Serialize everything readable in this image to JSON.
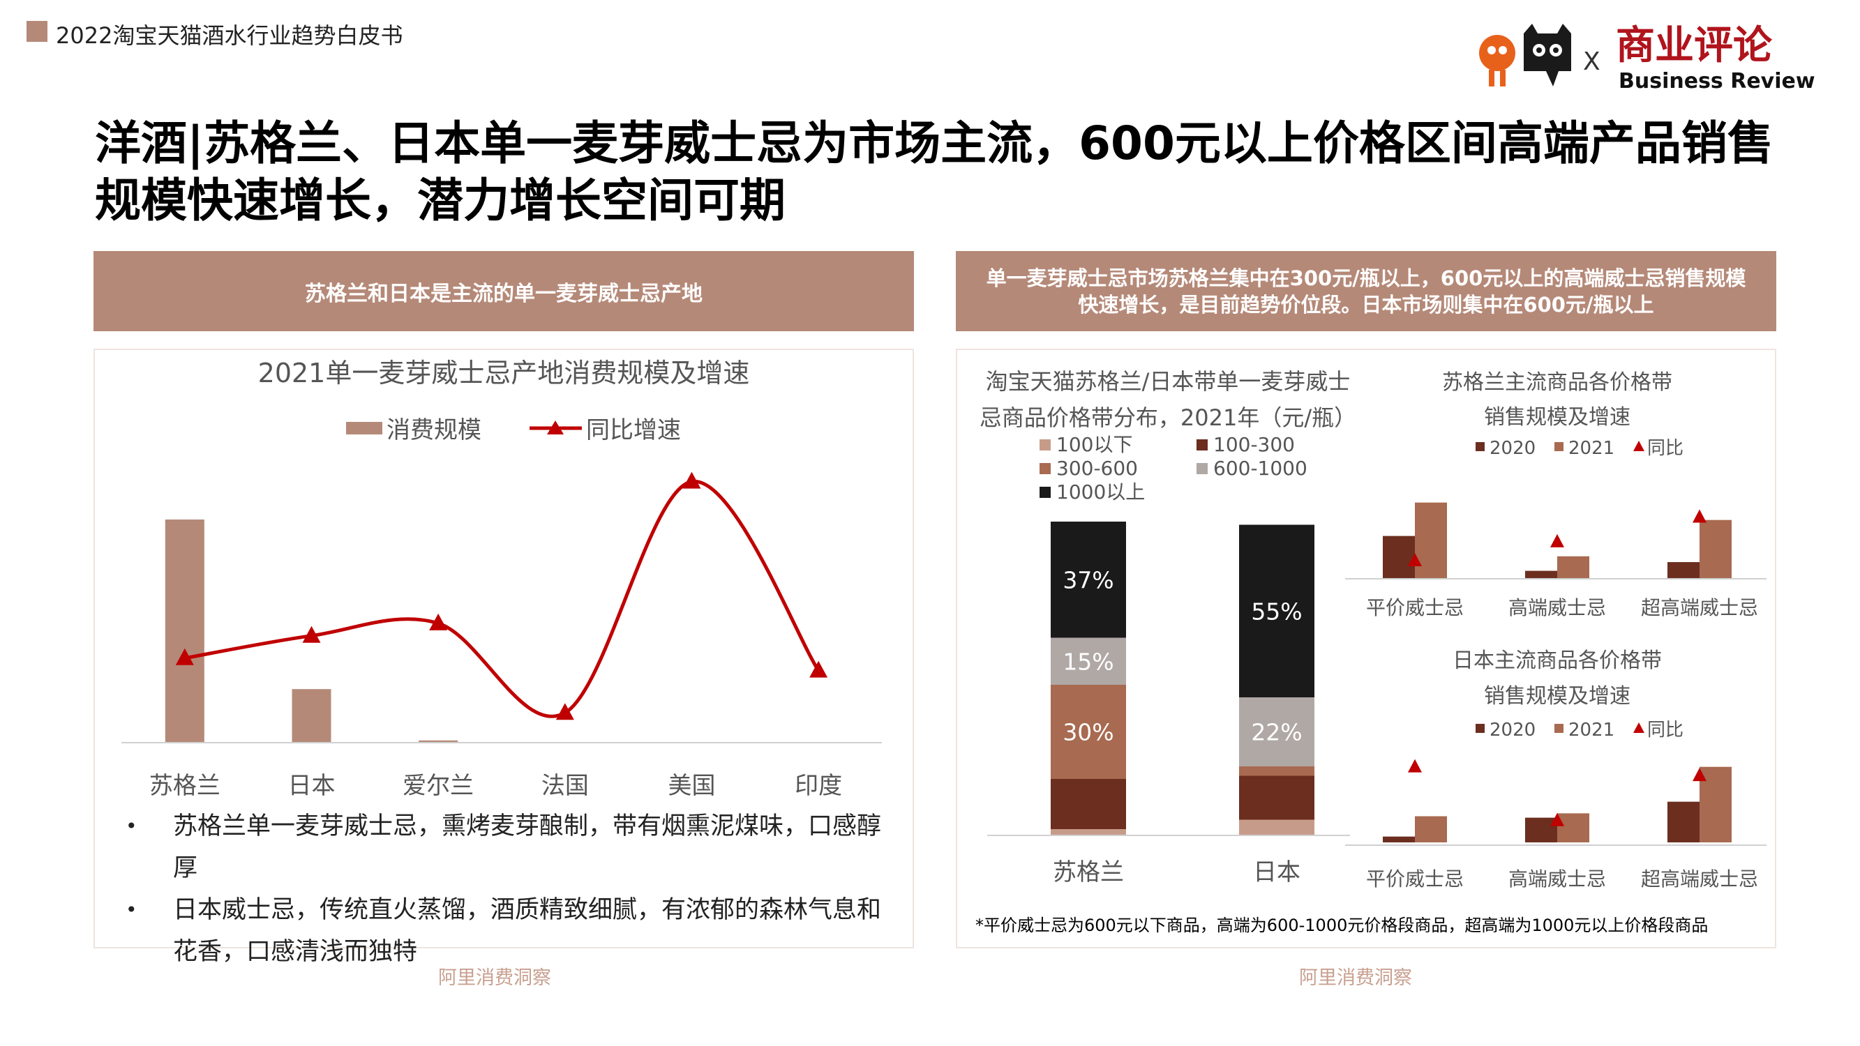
{
  "header": {
    "report_title": "2022淘宝天猫酒水行业趋势白皮书"
  },
  "logo": {
    "brand_text": "商业评论",
    "brand_sub": "Business Review",
    "x_mark": "X"
  },
  "title": "洋酒|苏格兰、日本单一麦芽威士忌为市场主流，600元以上价格区间高端产品销售规模快速增长，潜力增长空间可期",
  "left_panel": {
    "banner": "苏格兰和日本是主流的单一麦芽威士忌产地",
    "bullets": [
      "苏格兰单一麦芽威士忌，熏烤麦芽酿制，带有烟熏泥煤味，口感醇厚",
      "日本威士忌，传统直火蒸馏，酒质精致细腻，有浓郁的森林气息和花香，口感清浅而独特"
    ],
    "source": "阿里消费洞察"
  },
  "right_panel": {
    "banner": "单一麦芽威士忌市场苏格兰集中在300元/瓶以上，600元以上的高端威士忌销售规模快速增长，是目前趋势价位段。日本市场则集中在600元/瓶以上",
    "footnote": "*平价威士忌为600元以下商品，高端为600-1000元价格段商品，超高端为1000元以上价格段商品",
    "source": "阿里消费洞察"
  },
  "colors": {
    "accent": "#B58978",
    "line_red": "#C00000",
    "dark_brown": "#6B2E1F",
    "mid_brown": "#A86A50",
    "grey": "#B0A8A5",
    "black": "#1a1a1a",
    "light_brown": "#C79B8A"
  },
  "chart_data": [
    {
      "id": "origin",
      "type": "bar",
      "title": "2021单一麦芽威士忌产地消费规模及增速",
      "categories": [
        "苏格兰",
        "日本",
        "爱尔兰",
        "法国",
        "美国",
        "印度"
      ],
      "series": [
        {
          "name": "消费规模",
          "kind": "bar",
          "values": [
            100,
            24,
            1,
            0,
            0,
            0
          ]
        },
        {
          "name": "同比增速",
          "kind": "line",
          "values": [
            34,
            43,
            48,
            12,
            105,
            29
          ]
        }
      ],
      "ylim_bar": [
        0,
        100
      ],
      "ylim_line": [
        0,
        115
      ],
      "legend": "top",
      "grid": false
    },
    {
      "id": "price_dist",
      "type": "bar",
      "stacked": true,
      "title": "淘宝天猫苏格兰/日本带单一麦芽威士忌商品价格带分布，2021年（元/瓶）",
      "title_lines": [
        "淘宝天猫苏格兰/日本带单一麦芽威士",
        "忌商品价格带分布，2021年（元/瓶）"
      ],
      "categories": [
        "苏格兰",
        "日本"
      ],
      "series": [
        {
          "name": "100以下",
          "values": [
            2,
            5
          ]
        },
        {
          "name": "100-300",
          "values": [
            16,
            14
          ]
        },
        {
          "name": "300-600",
          "values": [
            30,
            3
          ]
        },
        {
          "name": "600-1000",
          "values": [
            15,
            22
          ]
        },
        {
          "name": "1000以上",
          "values": [
            37,
            55
          ]
        }
      ],
      "data_labels": [
        [
          "",
          "",
          "30%",
          "15%",
          "37%"
        ],
        [
          "",
          "",
          "",
          "22%",
          "55%"
        ]
      ],
      "ylim": [
        0,
        100
      ],
      "legend": "top-left"
    },
    {
      "id": "scotland_price",
      "type": "bar",
      "title": "苏格兰主流商品各价格带销售规模及增速",
      "title_lines": [
        "苏格兰主流商品各价格带",
        "销售规模及增速"
      ],
      "categories": [
        "平价威士忌",
        "高端威士忌",
        "超高端威士忌"
      ],
      "series": [
        {
          "name": "2020",
          "kind": "bar",
          "values": [
            29,
            5,
            11
          ]
        },
        {
          "name": "2021",
          "kind": "bar",
          "values": [
            52,
            15,
            40
          ]
        },
        {
          "name": "同比",
          "kind": "marker",
          "values": [
            12,
            25,
            42
          ]
        }
      ],
      "ylim": [
        0,
        60
      ],
      "legend": "top"
    },
    {
      "id": "japan_price",
      "type": "bar",
      "title": "日本主流商品各价格带销售规模及增速",
      "title_lines": [
        "日本主流商品各价格带",
        "销售规模及增速"
      ],
      "categories": [
        "平价威士忌",
        "高端威士忌",
        "超高端威士忌"
      ],
      "series": [
        {
          "name": "2020",
          "kind": "bar",
          "values": [
            4,
            17,
            28
          ]
        },
        {
          "name": "2021",
          "kind": "bar",
          "values": [
            18,
            20,
            52
          ]
        },
        {
          "name": "同比",
          "kind": "marker",
          "values": [
            52,
            15,
            46
          ]
        }
      ],
      "ylim": [
        0,
        60
      ],
      "legend": "top"
    }
  ]
}
